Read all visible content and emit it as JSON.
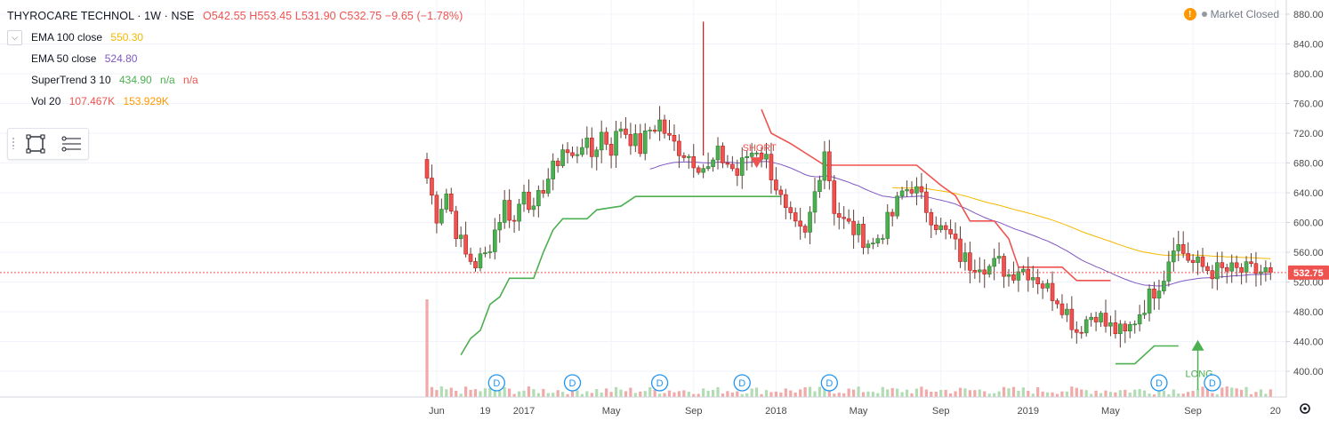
{
  "header": {
    "symbol": "THYROCARE TECHNOL · 1W · NSE",
    "ohlc": "O542.55  H553.45  L531.90  C532.75  −9.65 (−1.78%)"
  },
  "indicators": [
    {
      "label": "EMA 100 close",
      "values": [
        {
          "text": "550.30",
          "color": "#f5b800"
        }
      ]
    },
    {
      "label": "EMA 50 close",
      "values": [
        {
          "text": "524.80",
          "color": "#7e57c2"
        }
      ]
    },
    {
      "label": "SuperTrend 3 10",
      "values": [
        {
          "text": "434.90",
          "color": "#4caf50"
        },
        {
          "text": "n/a",
          "color": "#4caf50"
        },
        {
          "text": "n/a",
          "color": "#ef5350"
        }
      ]
    },
    {
      "label": "Vol 20",
      "values": [
        {
          "text": "107.467K",
          "color": "#ef5350"
        },
        {
          "text": "153.929K",
          "color": "#ff9800"
        }
      ]
    }
  ],
  "status": {
    "text": "Market Closed",
    "warn_symbol": "!"
  },
  "icons": {
    "collapse": "chevron-down-icon",
    "rectangle": "rectangle-tool-icon",
    "settings": "settings-lines-icon",
    "gear": "gear-icon"
  },
  "chart_data": {
    "type": "candlestick",
    "title": "",
    "y_ticks": [
      400,
      440,
      480,
      520,
      560,
      600,
      640,
      680,
      720,
      760,
      800,
      840,
      880
    ],
    "y_tick_labels": [
      "400.00",
      "440.00",
      "480.00",
      "520.00",
      "560.00",
      "600.00",
      "640.00",
      "680.00",
      "720.00",
      "760.00",
      "800.00",
      "840.00",
      "880.00"
    ],
    "x_labels": [
      {
        "label": "Jun",
        "t": 2
      },
      {
        "label": "19",
        "t": 12
      },
      {
        "label": "2017",
        "t": 20
      },
      {
        "label": "May",
        "t": 38
      },
      {
        "label": "Sep",
        "t": 55
      },
      {
        "label": "2018",
        "t": 72
      },
      {
        "label": "May",
        "t": 89
      },
      {
        "label": "Sep",
        "t": 106
      },
      {
        "label": "2019",
        "t": 124
      },
      {
        "label": "May",
        "t": 141
      },
      {
        "label": "Sep",
        "t": 158
      },
      {
        "label": "20",
        "t": 175
      }
    ],
    "last_price": 532.75,
    "last_price_label": "532.75",
    "dividend_marker": "D",
    "dividend_weeks": [
      14,
      30,
      48,
      65,
      83,
      151,
      162
    ],
    "signals": [
      {
        "text": "SHORT",
        "week": 68,
        "price": 690,
        "color": "#ef5350"
      },
      {
        "text": "LONG",
        "week": 159,
        "price": 423,
        "color": "#4caf50"
      }
    ],
    "supertrend_up": [
      [
        7,
        422
      ],
      [
        9,
        444
      ],
      [
        11,
        455
      ],
      [
        13,
        490
      ],
      [
        15,
        500
      ],
      [
        17,
        525
      ],
      [
        22,
        525
      ],
      [
        24,
        560
      ],
      [
        26,
        590
      ],
      [
        28,
        605
      ],
      [
        33,
        605
      ],
      [
        35,
        617
      ],
      [
        40,
        622
      ],
      [
        43,
        635
      ],
      [
        73,
        635
      ]
    ],
    "supertrend_down": [
      [
        69,
        752
      ],
      [
        71,
        720
      ],
      [
        75,
        706
      ],
      [
        82,
        677
      ],
      [
        101,
        677
      ],
      [
        106,
        650
      ],
      [
        109,
        636
      ],
      [
        112,
        602
      ],
      [
        117,
        602
      ],
      [
        120,
        578
      ],
      [
        122,
        540
      ],
      [
        131,
        540
      ],
      [
        134,
        522
      ],
      [
        141,
        522
      ]
    ],
    "supertrend_up2": [
      [
        142,
        410
      ],
      [
        146,
        410
      ],
      [
        150,
        434
      ],
      [
        155,
        434
      ]
    ]
  }
}
